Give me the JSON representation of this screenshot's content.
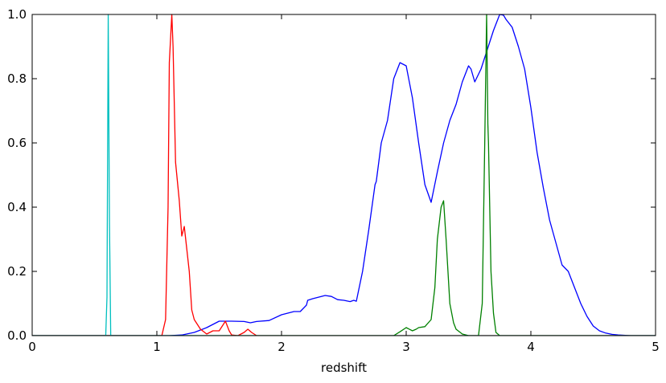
{
  "chart_data": {
    "type": "line",
    "title": "",
    "xlabel": "redshift",
    "ylabel": "",
    "xlim": [
      0,
      5
    ],
    "ylim": [
      0,
      1.0
    ],
    "grid": false,
    "legend": "none",
    "x_ticks": [
      0,
      1,
      2,
      3,
      4,
      5
    ],
    "x_tick_labels": [
      "0",
      "1",
      "2",
      "3",
      "4",
      "5"
    ],
    "y_ticks": [
      0,
      0.2,
      0.4,
      0.6,
      0.8,
      1.0
    ],
    "y_tick_labels": [
      "0.0",
      "0.2",
      "0.4",
      "0.6",
      "0.8",
      "1.0"
    ],
    "series": [
      {
        "color": "#0000ff",
        "x": [
          0,
          1.0,
          1.1,
          1.2,
          1.3,
          1.4,
          1.45,
          1.5,
          1.6,
          1.7,
          1.75,
          1.8,
          1.9,
          2.0,
          2.1,
          2.15,
          2.2,
          2.21,
          2.25,
          2.35,
          2.4,
          2.45,
          2.5,
          2.55,
          2.58,
          2.6,
          2.65,
          2.7,
          2.75,
          2.76,
          2.8,
          2.85,
          2.9,
          2.95,
          3.0,
          3.05,
          3.1,
          3.15,
          3.2,
          3.25,
          3.3,
          3.35,
          3.4,
          3.45,
          3.5,
          3.52,
          3.55,
          3.6,
          3.65,
          3.7,
          3.75,
          3.78,
          3.8,
          3.85,
          3.9,
          3.95,
          4.0,
          4.05,
          4.1,
          4.15,
          4.2,
          4.25,
          4.3,
          4.35,
          4.4,
          4.45,
          4.5,
          4.55,
          4.6,
          4.65,
          4.7,
          4.8,
          5.0
        ],
        "y": [
          0.0,
          0.0,
          0.0,
          0.002,
          0.01,
          0.025,
          0.035,
          0.045,
          0.045,
          0.044,
          0.04,
          0.044,
          0.047,
          0.065,
          0.075,
          0.075,
          0.095,
          0.11,
          0.115,
          0.125,
          0.122,
          0.112,
          0.11,
          0.106,
          0.11,
          0.107,
          0.2,
          0.33,
          0.47,
          0.48,
          0.6,
          0.67,
          0.8,
          0.85,
          0.84,
          0.74,
          0.6,
          0.47,
          0.415,
          0.51,
          0.6,
          0.67,
          0.72,
          0.79,
          0.84,
          0.83,
          0.79,
          0.83,
          0.89,
          0.95,
          1.0,
          0.998,
          0.985,
          0.96,
          0.9,
          0.83,
          0.71,
          0.57,
          0.46,
          0.36,
          0.29,
          0.22,
          0.2,
          0.15,
          0.1,
          0.06,
          0.03,
          0.015,
          0.008,
          0.004,
          0.002,
          0.0,
          0.0
        ]
      },
      {
        "color": "#ff0000",
        "x": [
          0,
          1.04,
          1.07,
          1.09,
          1.1,
          1.12,
          1.13,
          1.15,
          1.18,
          1.2,
          1.22,
          1.24,
          1.26,
          1.28,
          1.3,
          1.35,
          1.4,
          1.45,
          1.5,
          1.55,
          1.58,
          1.6,
          1.65,
          1.7,
          1.73,
          1.76,
          1.8,
          5.0
        ],
        "y": [
          0.0,
          0.0,
          0.05,
          0.4,
          0.85,
          1.0,
          0.9,
          0.54,
          0.42,
          0.31,
          0.34,
          0.27,
          0.2,
          0.08,
          0.05,
          0.02,
          0.005,
          0.015,
          0.015,
          0.045,
          0.015,
          0.002,
          0.0,
          0.01,
          0.02,
          0.01,
          0.0,
          0.0
        ]
      },
      {
        "color": "#008000",
        "x": [
          0,
          2.9,
          2.95,
          3.0,
          3.05,
          3.08,
          3.1,
          3.15,
          3.2,
          3.23,
          3.25,
          3.28,
          3.3,
          3.32,
          3.35,
          3.38,
          3.4,
          3.45,
          3.5,
          3.58,
          3.61,
          3.63,
          3.645,
          3.655,
          3.66,
          3.68,
          3.7,
          3.72,
          3.75,
          5.0
        ],
        "y": [
          0.0,
          0.0,
          0.012,
          0.025,
          0.015,
          0.02,
          0.025,
          0.028,
          0.05,
          0.15,
          0.3,
          0.4,
          0.42,
          0.3,
          0.1,
          0.04,
          0.02,
          0.005,
          0.0,
          0.0,
          0.1,
          0.6,
          1.0,
          0.66,
          0.6,
          0.2,
          0.07,
          0.01,
          0.0,
          0.0
        ]
      },
      {
        "color": "#00bfbf",
        "x": [
          0,
          0.59,
          0.6,
          0.61,
          0.62,
          0.63,
          5.0
        ],
        "y": [
          0.0,
          0.0,
          0.12,
          1.0,
          0.35,
          0.0,
          0.0
        ]
      }
    ]
  }
}
